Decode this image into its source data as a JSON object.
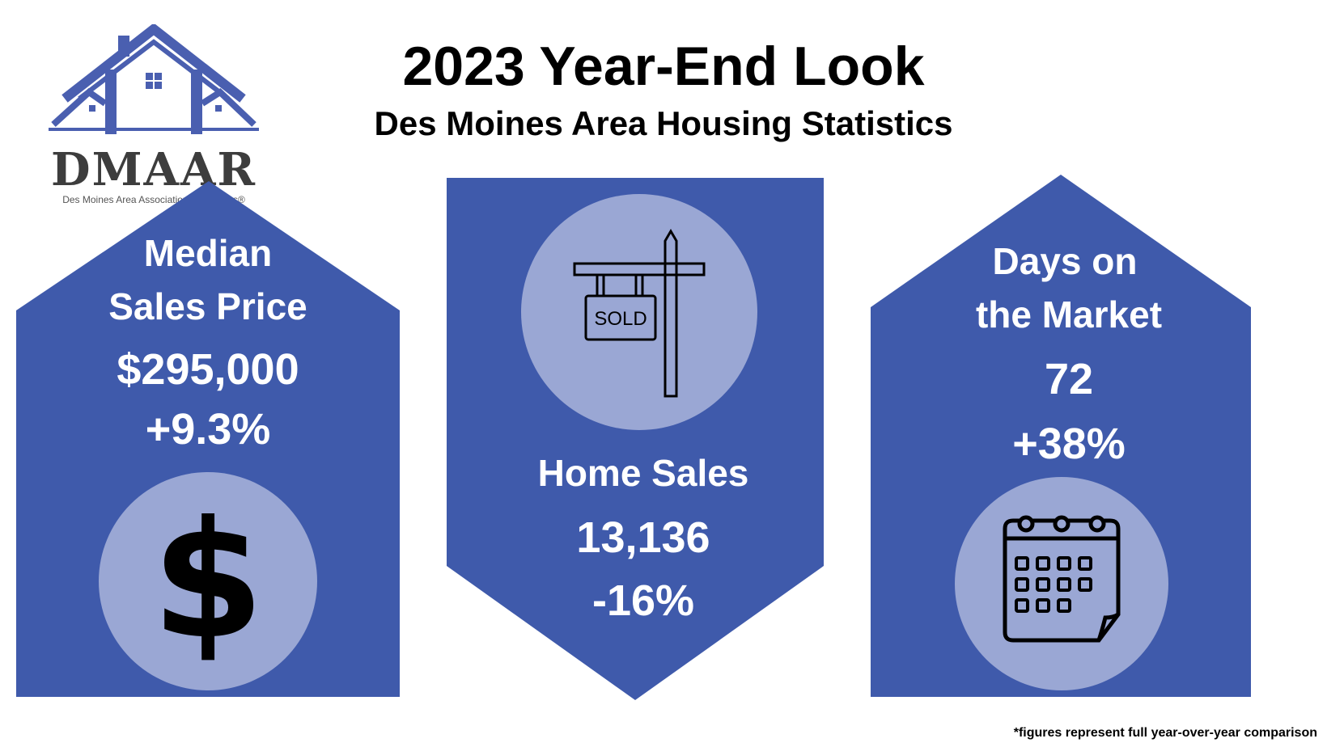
{
  "header": {
    "title": "2023 Year-End Look",
    "subtitle": "Des Moines Area Housing Statistics"
  },
  "logo": {
    "name": "DMAAR",
    "tagline": "Des Moines Area Association of Realtors®"
  },
  "colors": {
    "panel": "#3f5aab",
    "circle": "#9aa7d4",
    "logo_blue": "#4a5fb0"
  },
  "cards": [
    {
      "label_line1": "Median",
      "label_line2": "Sales Price",
      "value": "$295,000",
      "change": "+9.3%",
      "icon": "dollar-sign-icon"
    },
    {
      "label": "Home Sales",
      "value": "13,136",
      "change": "-16%",
      "icon": "sold-sign-icon",
      "sign_text": "SOLD"
    },
    {
      "label_line1": "Days on",
      "label_line2": "the Market",
      "value": "72",
      "change": "+38%",
      "icon": "calendar-icon"
    }
  ],
  "footnote": "*figures represent full year-over-year comparison"
}
